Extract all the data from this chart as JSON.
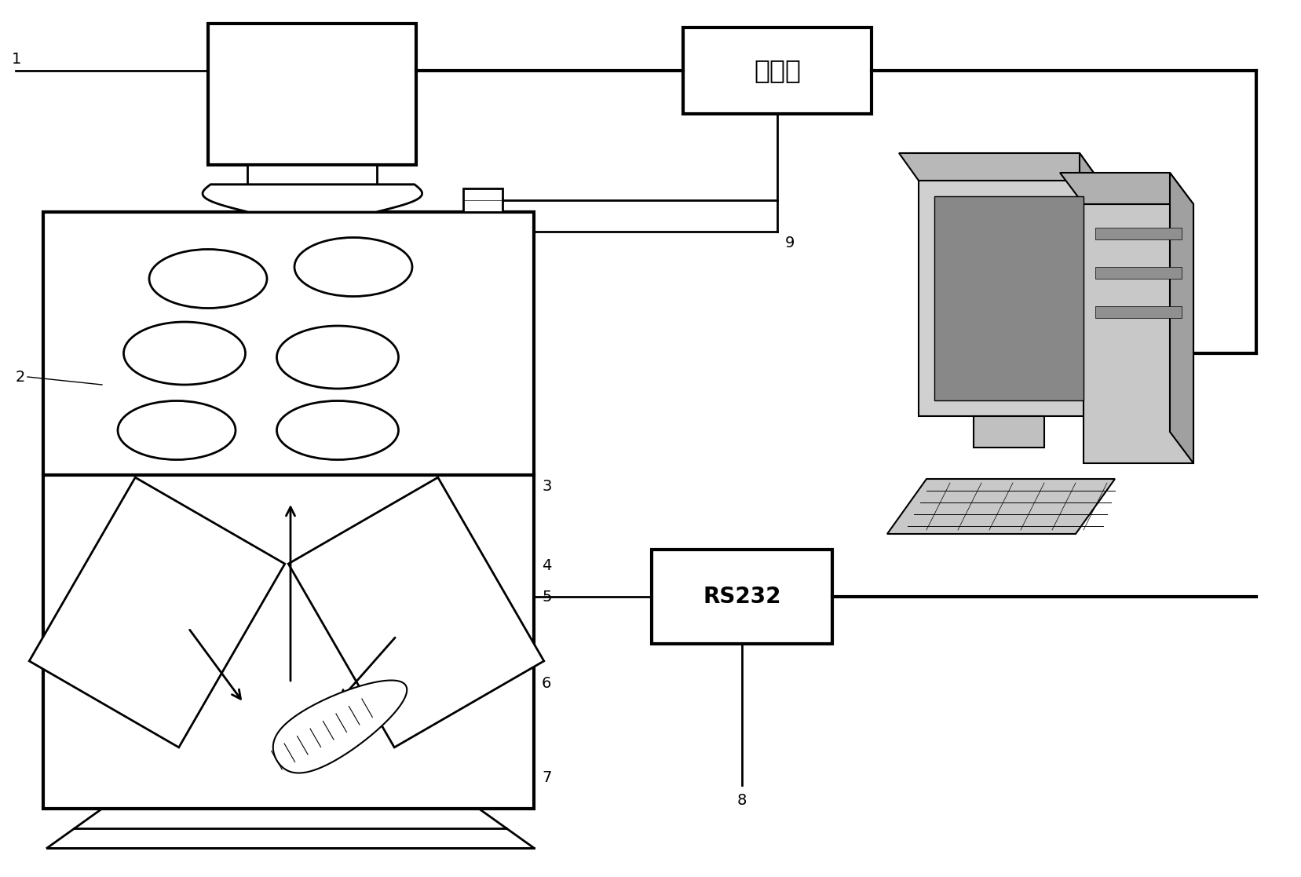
{
  "bg": "#ffffff",
  "lc": "#000000",
  "lw": 2.0,
  "lw_thick": 3.0,
  "label_fs": 14,
  "caiji_text": "采集卡",
  "rs232_text": "RS232",
  "labels": [
    "1",
    "2",
    "3",
    "4",
    "5",
    "6",
    "7",
    "8",
    "9"
  ],
  "fig_w": 16.57,
  "fig_h": 11.17
}
